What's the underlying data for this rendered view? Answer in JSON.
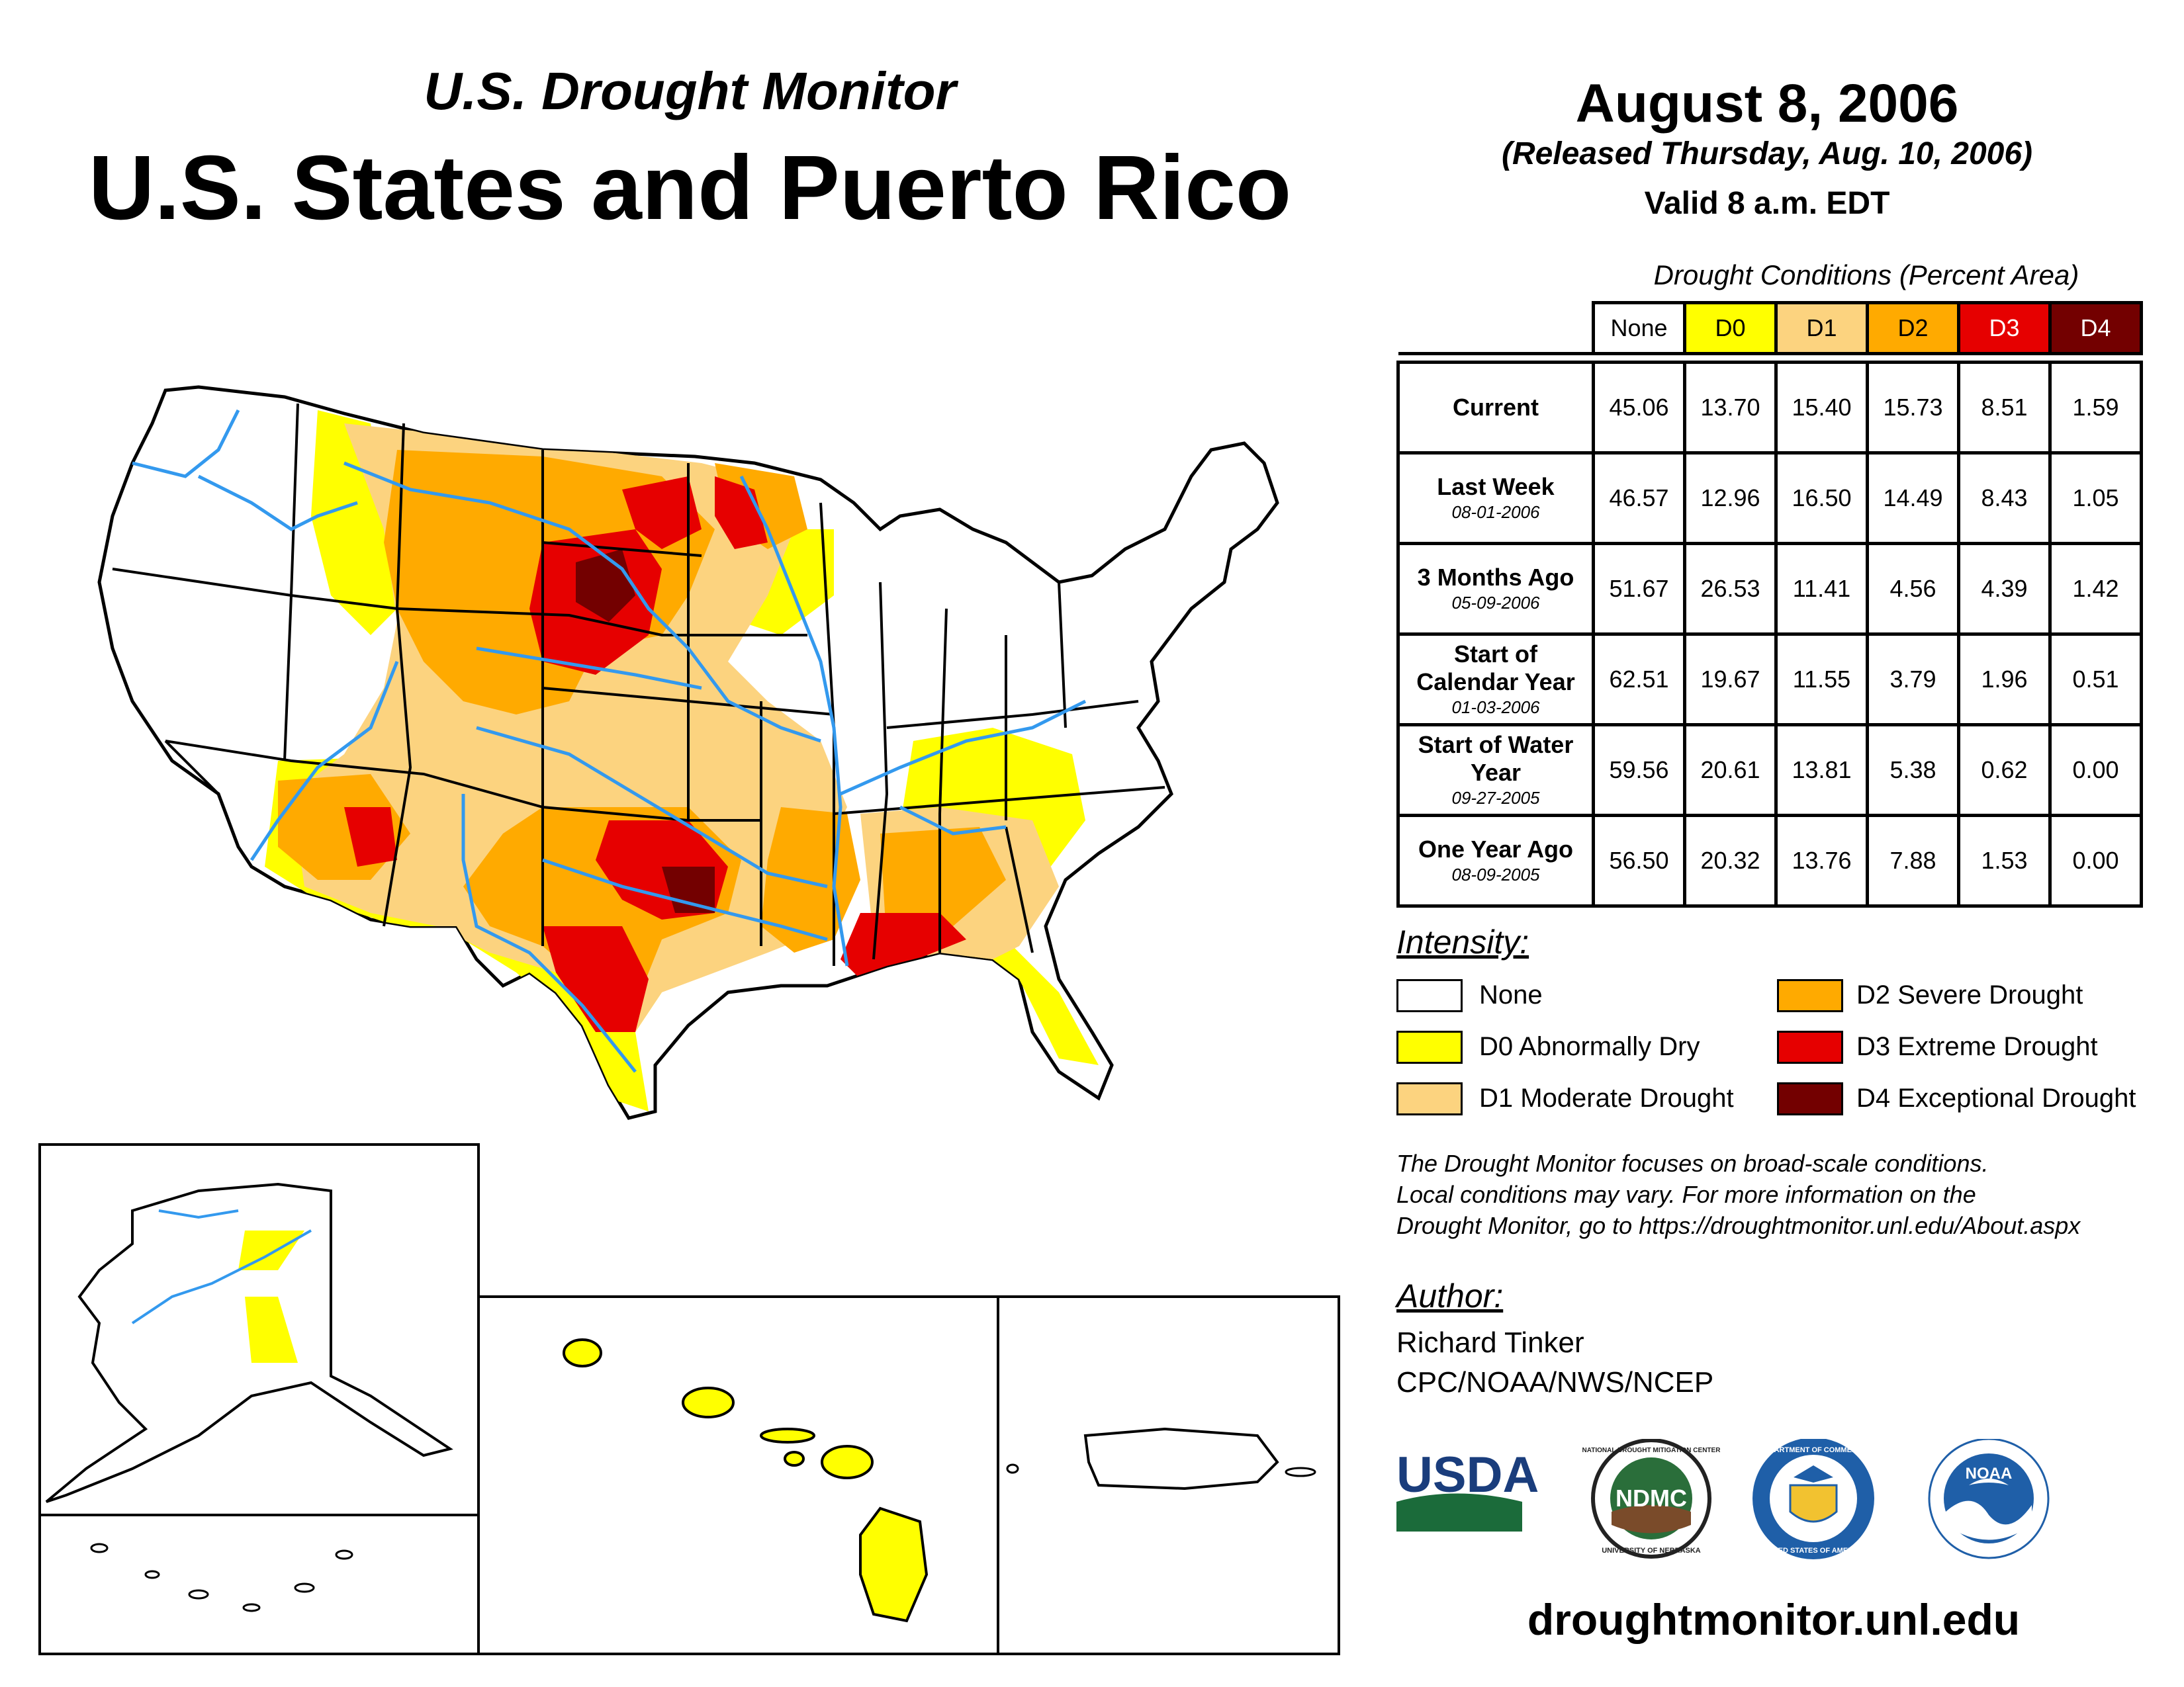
{
  "header": {
    "subtitle": "U.S. Drought Monitor",
    "title": "U.S. States and Puerto Rico",
    "date": "August 8, 2006",
    "released": "(Released Thursday, Aug. 10, 2006)",
    "valid": "Valid 8 a.m. EDT"
  },
  "table": {
    "caption": "Drought Conditions (Percent Area)",
    "columns": [
      "None",
      "D0",
      "D1",
      "D2",
      "D3",
      "D4"
    ],
    "column_colors": [
      "#ffffff",
      "#ffff00",
      "#fcd37f",
      "#ffaa00",
      "#e60000",
      "#730000"
    ],
    "rows": [
      {
        "label": "Current",
        "date": "",
        "values": [
          "45.06",
          "13.70",
          "15.40",
          "15.73",
          "8.51",
          "1.59"
        ]
      },
      {
        "label": "Last Week",
        "date": "08-01-2006",
        "values": [
          "46.57",
          "12.96",
          "16.50",
          "14.49",
          "8.43",
          "1.05"
        ]
      },
      {
        "label": "3 Months Ago",
        "date": "05-09-2006",
        "values": [
          "51.67",
          "26.53",
          "11.41",
          "4.56",
          "4.39",
          "1.42"
        ]
      },
      {
        "label": "Start of Calendar Year",
        "date": "01-03-2006",
        "values": [
          "62.51",
          "19.67",
          "11.55",
          "3.79",
          "1.96",
          "0.51"
        ]
      },
      {
        "label": "Start of Water Year",
        "date": "09-27-2005",
        "values": [
          "59.56",
          "20.61",
          "13.81",
          "5.38",
          "0.62",
          "0.00"
        ]
      },
      {
        "label": "One Year Ago",
        "date": "08-09-2005",
        "values": [
          "56.50",
          "20.32",
          "13.76",
          "7.88",
          "1.53",
          "0.00"
        ]
      }
    ]
  },
  "legend": {
    "title": "Intensity:",
    "items": [
      {
        "label": "None",
        "color": "#ffffff"
      },
      {
        "label": "D0 Abnormally Dry",
        "color": "#ffff00"
      },
      {
        "label": "D1 Moderate Drought",
        "color": "#fcd37f"
      },
      {
        "label": "D2 Severe Drought",
        "color": "#ffaa00"
      },
      {
        "label": "D3 Extreme Drought",
        "color": "#e60000"
      },
      {
        "label": "D4 Exceptional Drought",
        "color": "#730000"
      }
    ]
  },
  "note": [
    "The Drought Monitor focuses on broad-scale conditions.",
    "Local conditions may vary. For more information on the",
    "Drought Monitor, go to https://droughtmonitor.unl.edu/About.aspx"
  ],
  "author": {
    "title": "Author:",
    "name": "Richard Tinker",
    "org": "CPC/NOAA/NWS/NCEP"
  },
  "logos": {
    "usda": "USDA",
    "ndmc": "NDMC",
    "ndmc_ring_top": "NATIONAL DROUGHT MITIGATION CENTER",
    "ndmc_ring_bottom": "UNIVERSITY OF NEBRASKA",
    "commerce_ring": "DEPARTMENT OF COMMERCE",
    "commerce_ring_bottom": "UNITED STATES OF AMERICA",
    "noaa": "NOAA"
  },
  "website": "droughtmonitor.unl.edu",
  "colors": {
    "river": "#3399ee",
    "border": "#000000"
  }
}
